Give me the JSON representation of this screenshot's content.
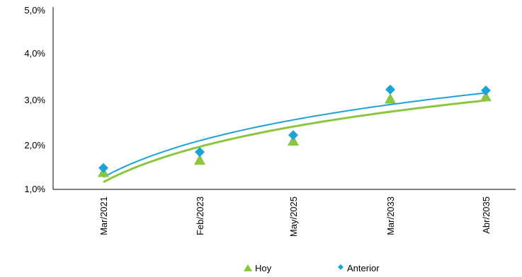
{
  "chart_data": {
    "type": "scatter",
    "categories": [
      "Mar/2021",
      "Feb/2023",
      "May/2025",
      "Mar/2033",
      "Abr/2035"
    ],
    "series": [
      {
        "name": "Hoy",
        "values": [
          1.38,
          1.65,
          2.07,
          2.99,
          3.04
        ],
        "color": "#8cc63f",
        "marker": "triangle",
        "trendline": "logarithmic"
      },
      {
        "name": "Anterior",
        "values": [
          1.47,
          1.82,
          2.19,
          3.19,
          3.17
        ],
        "color": "#1aa3d9",
        "marker": "diamond",
        "trendline": "logarithmic"
      }
    ],
    "y_ticks": [
      "1,0%",
      "2,0%",
      "3,0%",
      "4,0%",
      "5,0%"
    ],
    "ylim": [
      1.0,
      5.0
    ],
    "grid": false,
    "legend_position": "bottom"
  }
}
